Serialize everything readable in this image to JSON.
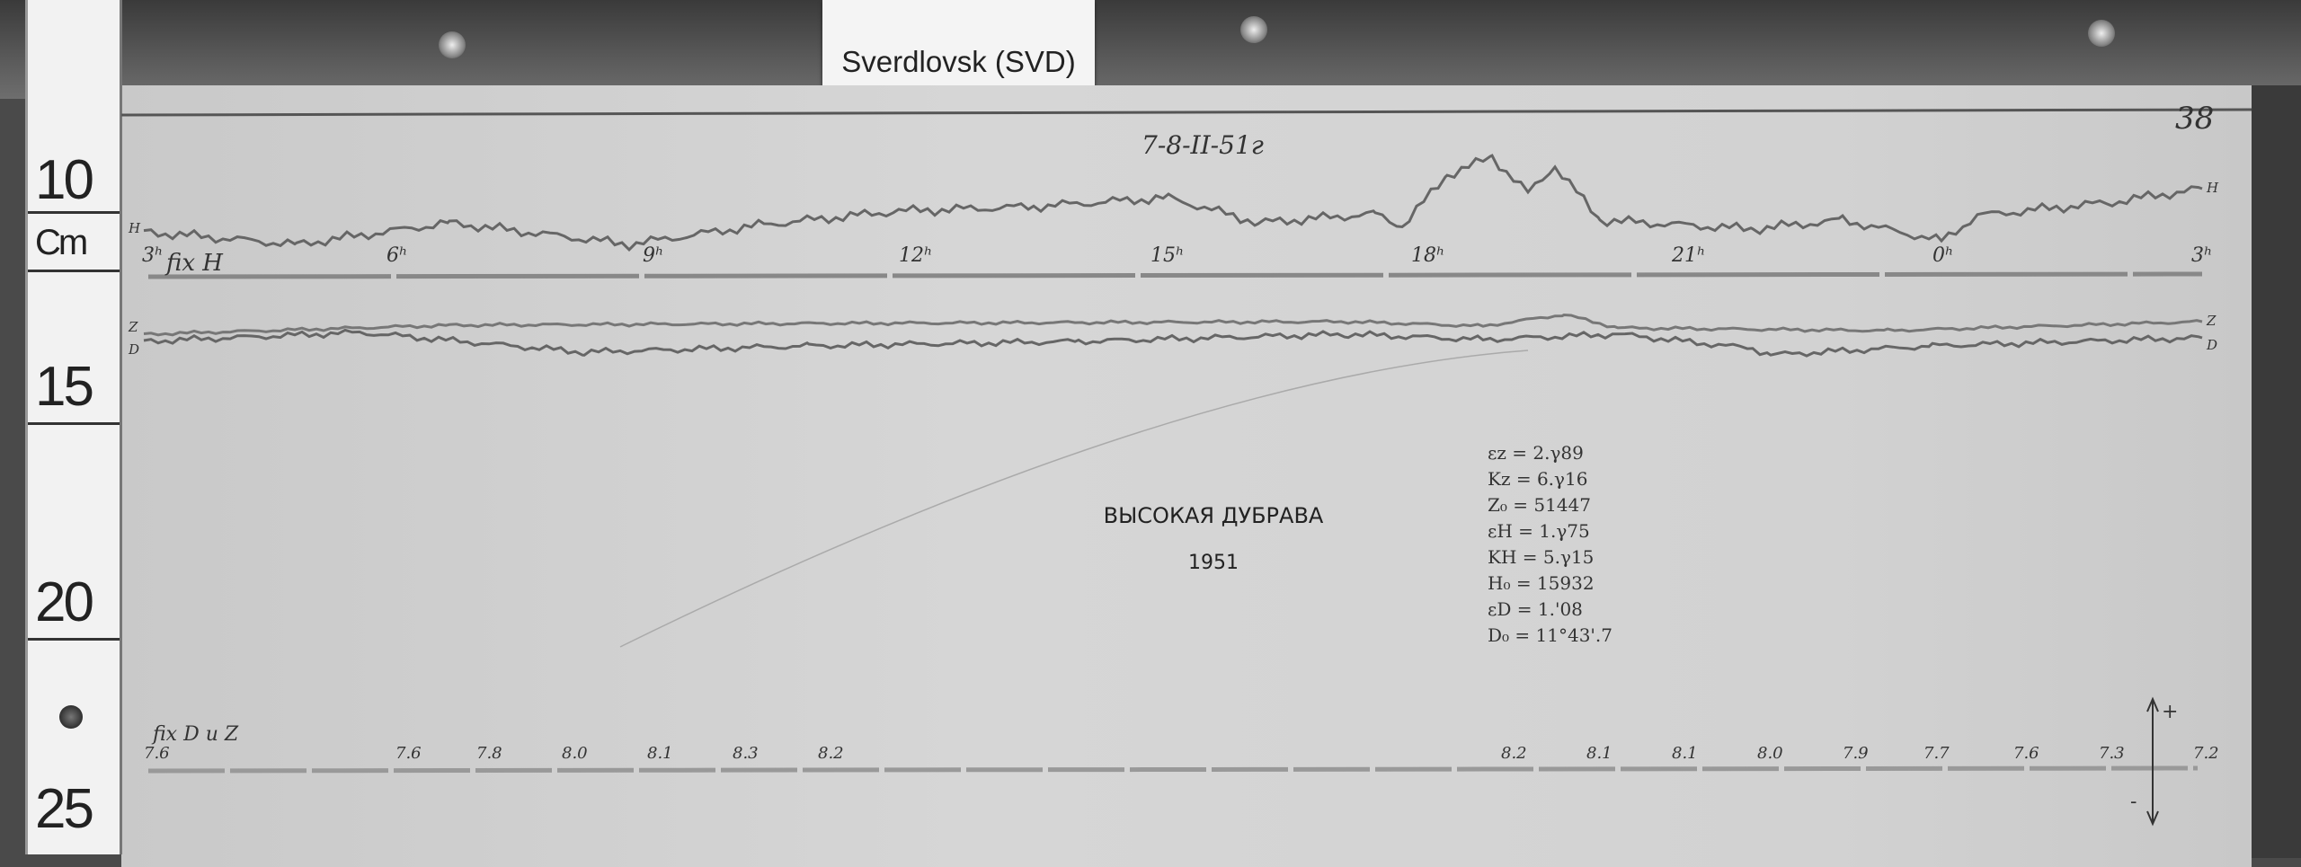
{
  "label": "Sverdlovsk (SVD)",
  "ruler": {
    "marks": [
      "10",
      "Cm",
      "15",
      "20",
      "25"
    ]
  },
  "sheet": {
    "number": "38",
    "date": "7-8-II-51г",
    "station": "ВЫСОКАЯ ДУБРАВА",
    "year": "1951",
    "h_axis_label": "fix H",
    "trace_labels": {
      "h": "H",
      "z": "Z",
      "d": "D"
    },
    "hours": [
      "3ʰ",
      "6ʰ",
      "9ʰ",
      "12ʰ",
      "15ʰ",
      "18ʰ",
      "21ʰ",
      "0ʰ",
      "3ʰ"
    ],
    "constants": [
      "εz = 2.γ89",
      "Kz = 6.γ16",
      "Z₀ = 51447",
      "εH = 1.γ75",
      "KH = 5.γ15",
      "H₀ = 15932",
      "εD = 1.'08",
      "D₀ = 11°43'.7"
    ],
    "temp_label": "fix D u Z",
    "temperatures": [
      "7.6",
      "7.6",
      "7.8",
      "8.0",
      "8.1",
      "8.3",
      "8.2",
      "8.2",
      "8.1",
      "8.1",
      "8.0",
      "7.9",
      "7.7",
      "7.6",
      "7.3",
      "7.2"
    ],
    "polarity": {
      "plus": "+",
      "minus": "-"
    }
  }
}
